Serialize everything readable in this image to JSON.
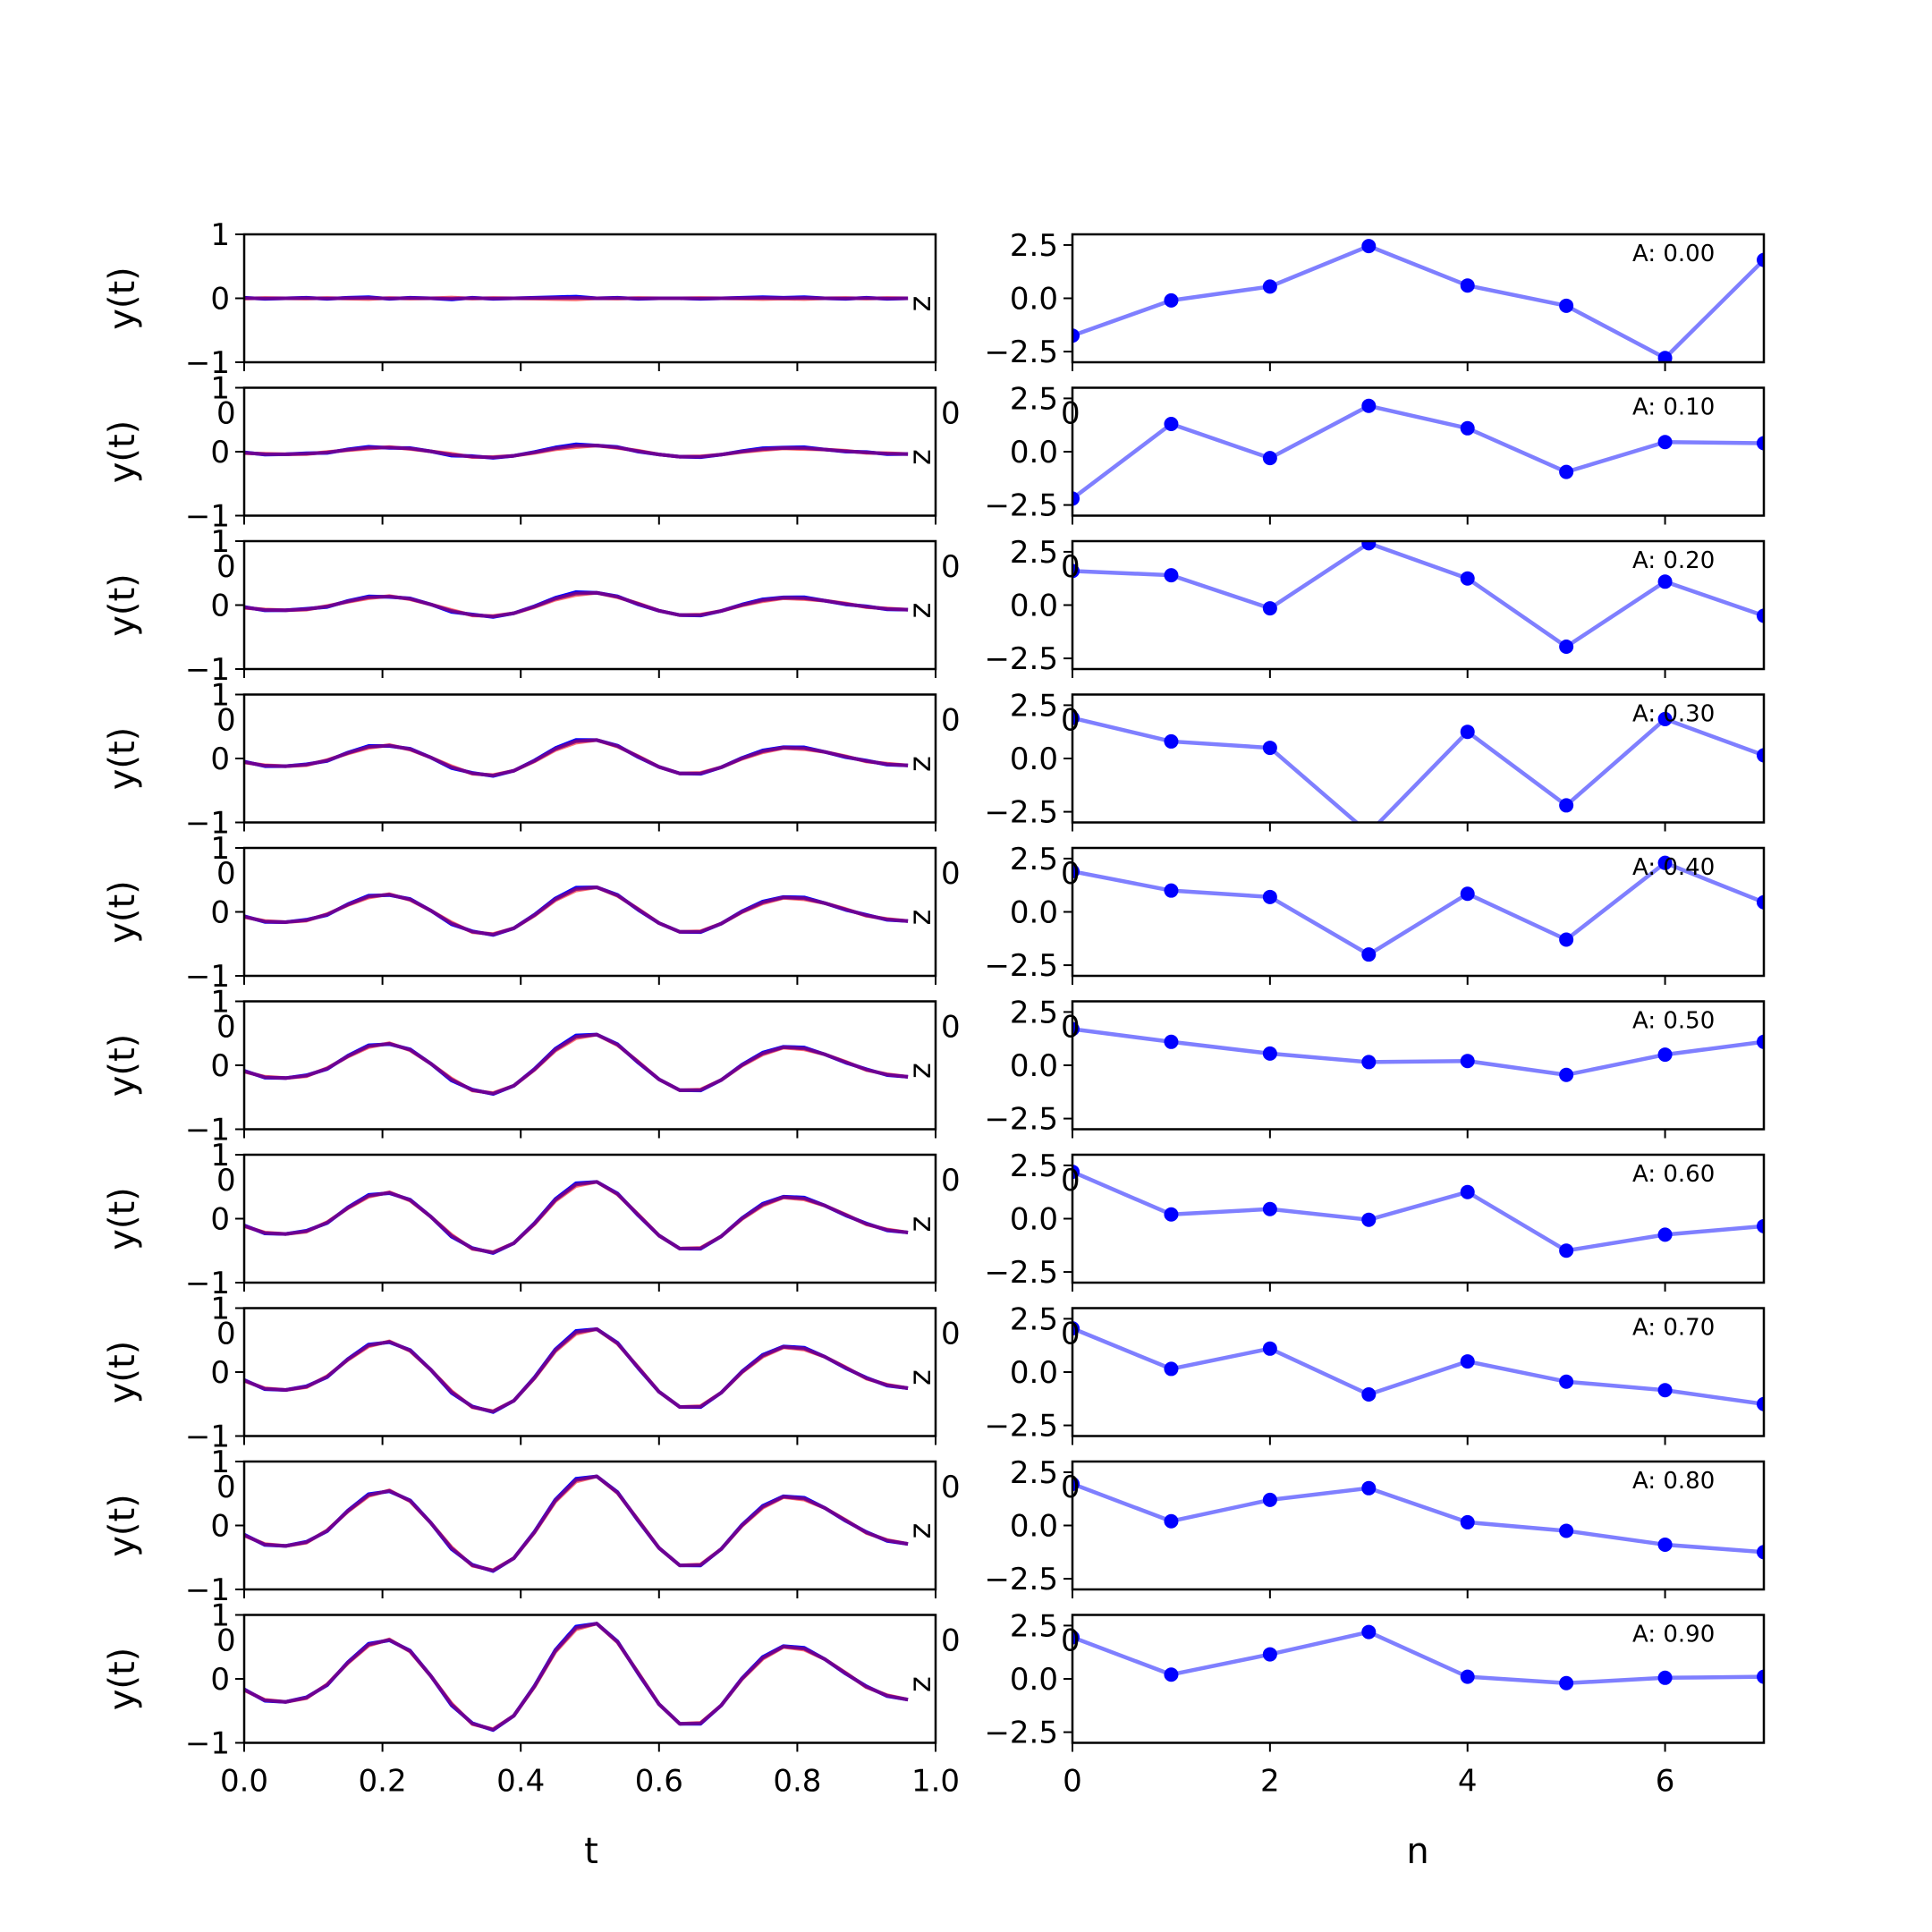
{
  "chart_data": [
    {
      "type": "line",
      "panel": "left",
      "x_label": "t",
      "y_label": "y(t)",
      "xlim": [
        0.0,
        1.0
      ],
      "ylim": [
        -1,
        1
      ],
      "x_ticks": [
        "0.0",
        "0.2",
        "0.4",
        "0.6",
        "0.8",
        "1.0"
      ],
      "y_ticks": [
        "−1",
        "0",
        "1"
      ],
      "colors": {
        "series_a": "#ff0000",
        "series_b": "#0000ff",
        "overlap": "#800080"
      },
      "stray_labels": {
        "z_label": "z",
        "left_zero": "0",
        "right_zero": "0"
      },
      "t": [
        0.0,
        0.03,
        0.06,
        0.09,
        0.12,
        0.15,
        0.18,
        0.21,
        0.24,
        0.27,
        0.3,
        0.33,
        0.36,
        0.39,
        0.42,
        0.45,
        0.48,
        0.51,
        0.54,
        0.57,
        0.6,
        0.63,
        0.66,
        0.69,
        0.72,
        0.75,
        0.78,
        0.81,
        0.84,
        0.87,
        0.9,
        0.93,
        0.96
      ],
      "amplitudes": [
        0.0,
        0.1,
        0.2,
        0.3,
        0.4,
        0.5,
        0.6,
        0.7,
        0.8,
        0.9
      ],
      "base_wave": [
        -0.19,
        -0.37,
        -0.4,
        -0.33,
        -0.1,
        0.28,
        0.59,
        0.68,
        0.48,
        0.05,
        -0.44,
        -0.78,
        -0.88,
        -0.64,
        -0.13,
        0.48,
        0.88,
        0.96,
        0.64,
        0.1,
        -0.44,
        -0.78,
        -0.77,
        -0.46,
        0.0,
        0.36,
        0.56,
        0.52,
        0.34,
        0.1,
        -0.14,
        -0.29,
        -0.36
      ],
      "noise": [
        0.01,
        -0.01,
        0.0,
        0.01,
        -0.01,
        0.01,
        0.02,
        -0.01,
        0.01,
        0.0,
        -0.02,
        0.01,
        -0.01,
        0.0,
        0.01,
        0.02,
        0.03,
        0.0,
        0.01,
        -0.01,
        0.0,
        0.0,
        -0.01,
        0.0,
        0.01,
        0.02,
        0.01,
        0.02,
        0.0,
        -0.01,
        0.01,
        -0.01,
        0.0
      ]
    },
    {
      "type": "line",
      "panel": "right",
      "x_label": "n",
      "xlim": [
        0,
        7
      ],
      "ylim": [
        -3,
        3
      ],
      "x_ticks": [
        "0",
        "2",
        "4",
        "6"
      ],
      "y_ticks": [
        "−2.5",
        "0.0",
        "2.5"
      ],
      "line_color": "#0000ff",
      "stray_label": "0",
      "n": [
        0,
        1,
        2,
        3,
        4,
        5,
        6,
        7
      ],
      "series": [
        {
          "name": "A: 0.00",
          "values": [
            -1.75,
            -0.1,
            0.55,
            2.45,
            0.6,
            -0.35,
            -2.8,
            1.8
          ]
        },
        {
          "name": "A: 0.10",
          "values": [
            -2.2,
            1.3,
            -0.3,
            2.15,
            1.1,
            -0.95,
            0.45,
            0.4
          ]
        },
        {
          "name": "A: 0.20",
          "values": [
            1.6,
            1.4,
            -0.15,
            2.9,
            1.25,
            -1.95,
            1.1,
            -0.5
          ]
        },
        {
          "name": "A: 0.30",
          "values": [
            1.9,
            0.8,
            0.5,
            -3.5,
            1.25,
            -2.2,
            1.85,
            0.15
          ]
        },
        {
          "name": "A: 0.40",
          "values": [
            1.9,
            1.0,
            0.7,
            -2.0,
            0.85,
            -1.3,
            2.3,
            0.45
          ]
        },
        {
          "name": "A: 0.50",
          "values": [
            1.7,
            1.1,
            0.55,
            0.15,
            0.2,
            -0.45,
            0.5,
            1.1
          ]
        },
        {
          "name": "A: 0.60",
          "values": [
            2.2,
            0.2,
            0.45,
            -0.05,
            1.25,
            -1.5,
            -0.75,
            -0.35
          ]
        },
        {
          "name": "A: 0.70",
          "values": [
            2.05,
            0.15,
            1.1,
            -1.05,
            0.5,
            -0.45,
            -0.85,
            -1.5
          ]
        },
        {
          "name": "A: 0.80",
          "values": [
            1.95,
            0.2,
            1.2,
            1.75,
            0.15,
            -0.25,
            -0.9,
            -1.25
          ]
        },
        {
          "name": "A: 0.90",
          "values": [
            1.95,
            0.2,
            1.15,
            2.2,
            0.1,
            -0.2,
            0.05,
            0.1
          ]
        }
      ]
    }
  ]
}
